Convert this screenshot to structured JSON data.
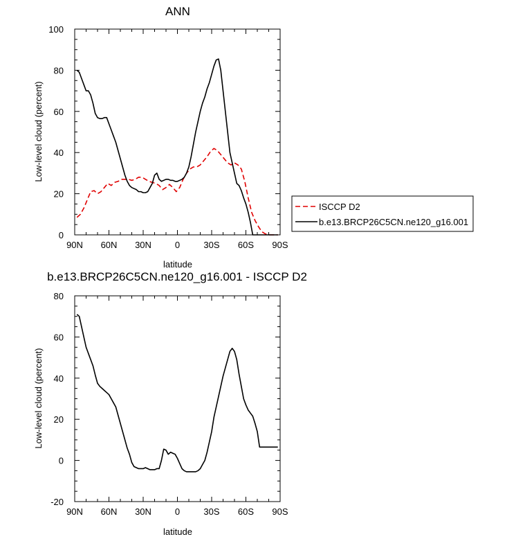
{
  "chart_data": [
    {
      "type": "line",
      "title": "ANN",
      "xlabel": "latitude",
      "ylabel": "Low-level cloud (percent)",
      "xlim": [
        90,
        -90
      ],
      "ylim": [
        0,
        100
      ],
      "xticks": [
        90,
        60,
        30,
        0,
        -30,
        -60,
        -90
      ],
      "xtick_labels": [
        "90N",
        "60N",
        "30N",
        "0",
        "30S",
        "60S",
        "90S"
      ],
      "yticks": [
        0,
        20,
        40,
        60,
        80,
        100
      ],
      "ytick_labels": [
        "0",
        "20",
        "40",
        "60",
        "80",
        "100"
      ],
      "legend": {
        "placement": "right",
        "entries": [
          "ISCCP D2",
          "b.e13.BRCP26C5CN.ne120_g16.001"
        ]
      },
      "series": [
        {
          "name": "ISCCP D2",
          "color": "#e00000",
          "dash": "dashed",
          "x": [
            88,
            85,
            82,
            79,
            76,
            73,
            70,
            67,
            64,
            61,
            58,
            55,
            52,
            49,
            46,
            43,
            40,
            37,
            34,
            31,
            28,
            25,
            22,
            19,
            16,
            13,
            10,
            7,
            4,
            1,
            -2,
            -5,
            -8,
            -11,
            -14,
            -17,
            -20,
            -23,
            -26,
            -29,
            -32,
            -35,
            -38,
            -41,
            -44,
            -47,
            -50,
            -53,
            -56,
            -59,
            -62,
            -65,
            -68,
            -71,
            -74,
            -77,
            -80,
            -83,
            -86,
            -88
          ],
          "y": [
            8.5,
            10,
            13,
            17,
            21,
            21.5,
            20,
            21,
            23,
            25,
            24,
            25.5,
            26,
            27,
            27,
            27,
            26.5,
            27,
            28,
            28,
            27,
            26,
            25.5,
            25,
            24,
            22,
            23,
            24.5,
            23,
            21,
            23,
            27,
            30,
            32,
            33,
            33,
            34,
            36,
            38,
            40.5,
            42,
            41,
            39,
            37,
            35,
            34,
            35,
            34,
            32,
            26,
            18,
            11,
            7,
            4,
            1.5,
            0.5,
            0,
            0,
            0,
            0
          ]
        },
        {
          "name": "b.e13.BRCP26C5CN.ne120_g16.001",
          "color": "#000000",
          "dash": "solid",
          "x": [
            88,
            86,
            84,
            82,
            80,
            78,
            76,
            74,
            72,
            70,
            68,
            66,
            64,
            62,
            60,
            58,
            56,
            54,
            52,
            50,
            48,
            46,
            44,
            42,
            40,
            38,
            36,
            34,
            32,
            30,
            28,
            26,
            24,
            22,
            20,
            18,
            16,
            14,
            12,
            10,
            8,
            6,
            4,
            2,
            0,
            -2,
            -4,
            -6,
            -8,
            -10,
            -12,
            -14,
            -16,
            -18,
            -20,
            -22,
            -24,
            -26,
            -28,
            -30,
            -32,
            -34,
            -36,
            -38,
            -40,
            -42,
            -44,
            -46,
            -48,
            -50,
            -52,
            -54,
            -56,
            -58,
            -60,
            -62,
            -64,
            -66,
            -68,
            -70,
            -72,
            -74,
            -76,
            -78,
            -80,
            -82,
            -84,
            -86,
            -88
          ],
          "y": [
            80,
            79,
            76,
            73,
            70,
            70,
            68,
            64,
            59,
            57,
            56.5,
            56.5,
            57,
            57,
            54,
            51,
            48,
            45,
            41,
            37,
            33,
            29,
            26,
            24,
            23,
            22.5,
            22,
            21,
            21,
            20.5,
            20.5,
            21,
            23,
            25,
            29,
            30,
            27,
            26,
            26.5,
            27,
            27,
            26.5,
            26.5,
            26,
            26,
            26.5,
            27,
            28,
            30,
            33,
            38,
            44,
            50,
            55,
            60,
            64,
            67,
            71,
            74,
            78,
            82,
            85,
            85.5,
            80,
            70,
            60,
            50,
            40,
            35,
            30,
            25,
            24,
            21.5,
            18,
            15,
            11,
            6,
            0,
            0,
            0,
            0,
            0,
            0,
            0,
            0,
            0,
            0,
            0,
            0
          ]
        }
      ]
    },
    {
      "type": "line",
      "title": "b.e13.BRCP26C5CN.ne120_g16.001 - ISCCP D2",
      "xlabel": "latitude",
      "ylabel": "Low-level cloud (percent)",
      "xlim": [
        90,
        -90
      ],
      "ylim": [
        -20,
        80
      ],
      "xticks": [
        90,
        60,
        30,
        0,
        -30,
        -60,
        -90
      ],
      "xtick_labels": [
        "90N",
        "60N",
        "30N",
        "0",
        "30S",
        "60S",
        "90S"
      ],
      "yticks": [
        -20,
        0,
        20,
        40,
        60,
        80
      ],
      "ytick_labels": [
        "-20",
        "0",
        "20",
        "40",
        "60",
        "80"
      ],
      "series": [
        {
          "color": "#000000",
          "dash": "solid",
          "x": [
            88,
            86,
            84,
            82,
            80,
            78,
            76,
            74,
            72,
            70,
            68,
            66,
            64,
            62,
            60,
            58,
            56,
            54,
            52,
            50,
            48,
            46,
            44,
            42,
            40,
            38,
            36,
            34,
            32,
            30,
            28,
            26,
            24,
            22,
            20,
            18,
            16,
            14,
            12,
            10,
            8,
            6,
            4,
            2,
            0,
            -2,
            -4,
            -6,
            -8,
            -10,
            -12,
            -14,
            -16,
            -18,
            -20,
            -22,
            -24,
            -26,
            -28,
            -30,
            -32,
            -34,
            -36,
            -38,
            -40,
            -42,
            -44,
            -46,
            -48,
            -50,
            -52,
            -54,
            -56,
            -58,
            -60,
            -62,
            -64,
            -66,
            -68,
            -70,
            -72,
            -74,
            -76,
            -78,
            -80,
            -82,
            -84,
            -86,
            -88
          ],
          "y": [
            71,
            70,
            65,
            60,
            55,
            52,
            49,
            46,
            41.5,
            37.5,
            36,
            35,
            34,
            33,
            32,
            30,
            28,
            26,
            22,
            18,
            14,
            10,
            6,
            3,
            -1,
            -3,
            -3.5,
            -4,
            -4,
            -4,
            -3.5,
            -4,
            -4.5,
            -4.5,
            -4.5,
            -4,
            -4,
            0,
            5.5,
            5,
            3,
            4,
            3.5,
            3,
            1,
            -1.5,
            -4,
            -5,
            -5.5,
            -5.5,
            -5.5,
            -5.5,
            -5.5,
            -5,
            -4,
            -2,
            0,
            4,
            9,
            14,
            21,
            26,
            31,
            36,
            41,
            45,
            49,
            53,
            54.5,
            53,
            49,
            42,
            36,
            30,
            27,
            24.5,
            23,
            21.5,
            18,
            14,
            6.5,
            6.5,
            6.5,
            6.5,
            6.5,
            6.5,
            6.5,
            6.5,
            6.5
          ]
        }
      ]
    }
  ]
}
